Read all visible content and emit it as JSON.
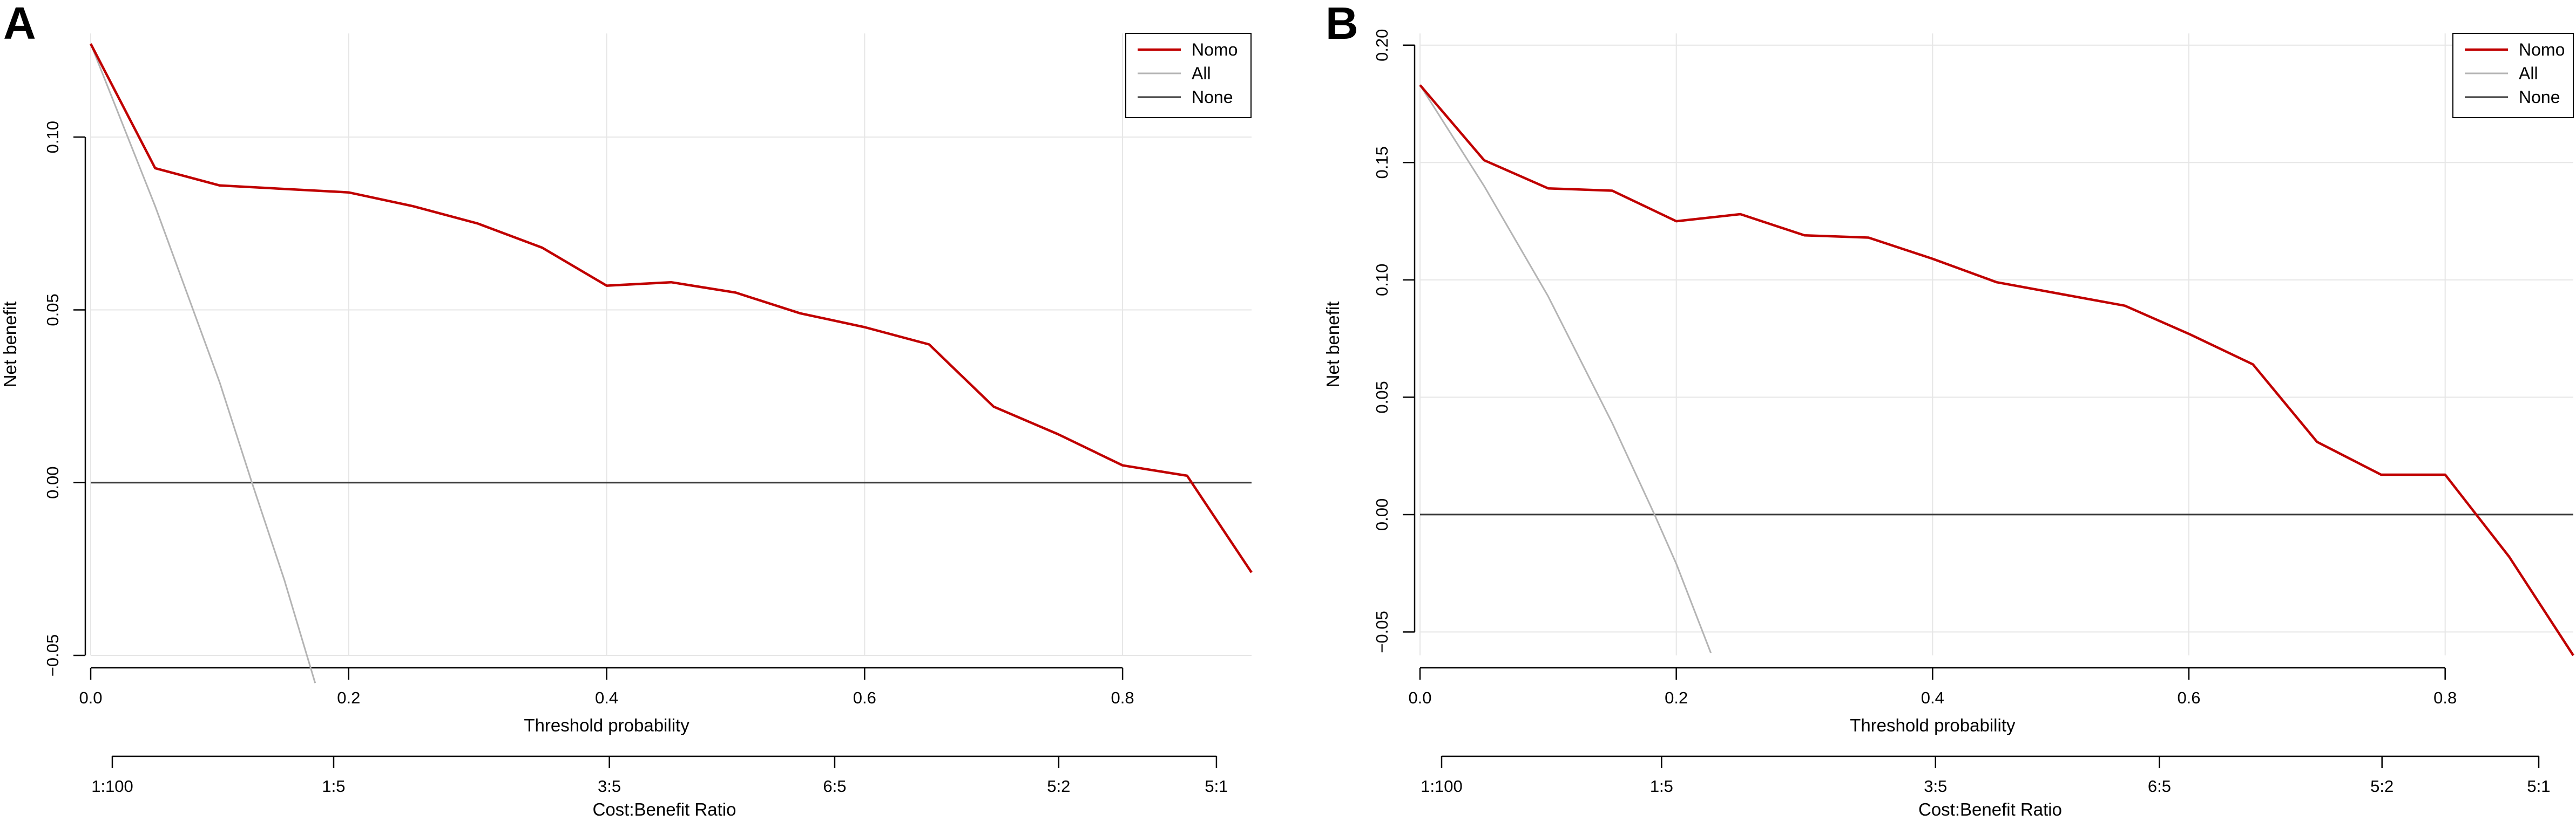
{
  "figure_panels": [
    "A",
    "B"
  ],
  "chart_data": [
    {
      "type": "line",
      "panel_label": "A",
      "title": "",
      "xlabel": "Threshold probability",
      "ylabel": "Net benefit",
      "xlim": [
        0.0,
        0.9
      ],
      "ylim": [
        -0.05,
        0.13
      ],
      "x_ticks": [
        0.0,
        0.2,
        0.4,
        0.6,
        0.8
      ],
      "x_tick_labels": [
        "0.0",
        "0.2",
        "0.4",
        "0.6",
        "0.8"
      ],
      "y_ticks": [
        -0.05,
        0.0,
        0.05,
        0.1
      ],
      "y_tick_labels": [
        "−0.05",
        "0.00",
        "0.05",
        "0.10"
      ],
      "grid": true,
      "legend_position": "top-right",
      "series": [
        {
          "name": "Nomo",
          "color": "#c00000",
          "x": [
            0.0,
            0.05,
            0.1,
            0.15,
            0.2,
            0.25,
            0.3,
            0.35,
            0.4,
            0.45,
            0.5,
            0.55,
            0.6,
            0.65,
            0.7,
            0.75,
            0.8,
            0.85,
            0.9
          ],
          "values": [
            0.127,
            0.091,
            0.086,
            0.085,
            0.084,
            0.08,
            0.075,
            0.068,
            0.057,
            0.058,
            0.055,
            0.049,
            0.045,
            0.04,
            0.022,
            0.014,
            0.005,
            0.002,
            -0.026
          ]
        },
        {
          "name": "All",
          "color": "#b4b4b4",
          "x": [
            0.0,
            0.05,
            0.1,
            0.125,
            0.15,
            0.174
          ],
          "values": [
            0.127,
            0.08,
            0.029,
            0.0,
            -0.028,
            -0.058
          ]
        },
        {
          "name": "None",
          "color": "#3a3a3a",
          "x": [
            0.0,
            0.9
          ],
          "values": [
            0.0,
            0.0
          ]
        }
      ],
      "secondary_axis": {
        "title": "Cost:Benefit Ratio",
        "ticks": [
          0.0,
          0.167,
          0.375,
          0.545,
          0.714,
          0.833
        ],
        "labels": [
          "1:100",
          "1:5",
          "3:5",
          "6:5",
          "5:2",
          "5:1"
        ]
      }
    },
    {
      "type": "line",
      "panel_label": "B",
      "title": "",
      "xlabel": "Threshold probability",
      "ylabel": "Net benefit",
      "xlim": [
        0.0,
        0.9
      ],
      "ylim": [
        -0.06,
        0.205
      ],
      "x_ticks": [
        0.0,
        0.2,
        0.4,
        0.6,
        0.8
      ],
      "x_tick_labels": [
        "0.0",
        "0.2",
        "0.4",
        "0.6",
        "0.8"
      ],
      "y_ticks": [
        -0.05,
        0.0,
        0.05,
        0.1,
        0.15,
        0.2
      ],
      "y_tick_labels": [
        "−0.05",
        "0.00",
        "0.05",
        "0.10",
        "0.15",
        "0.20"
      ],
      "grid": true,
      "legend_position": "top-right",
      "series": [
        {
          "name": "Nomo",
          "color": "#c00000",
          "x": [
            0.0,
            0.05,
            0.1,
            0.15,
            0.2,
            0.25,
            0.3,
            0.35,
            0.4,
            0.45,
            0.5,
            0.55,
            0.6,
            0.65,
            0.7,
            0.75,
            0.8,
            0.85,
            0.9
          ],
          "values": [
            0.183,
            0.151,
            0.139,
            0.138,
            0.125,
            0.128,
            0.119,
            0.118,
            0.109,
            0.099,
            0.094,
            0.089,
            0.077,
            0.064,
            0.031,
            0.017,
            0.017,
            -0.018,
            -0.06
          ]
        },
        {
          "name": "All",
          "color": "#b4b4b4",
          "x": [
            0.0,
            0.05,
            0.1,
            0.15,
            0.183,
            0.2,
            0.227
          ],
          "values": [
            0.183,
            0.14,
            0.093,
            0.039,
            0.0,
            -0.021,
            -0.059
          ]
        },
        {
          "name": "None",
          "color": "#3a3a3a",
          "x": [
            0.0,
            0.9
          ],
          "values": [
            0.0,
            0.0
          ]
        }
      ],
      "secondary_axis": {
        "title": "Cost:Benefit Ratio",
        "ticks": [
          0.0,
          0.167,
          0.375,
          0.545,
          0.714,
          0.833
        ],
        "labels": [
          "1:100",
          "1:5",
          "3:5",
          "6:5",
          "5:2",
          "5:1"
        ]
      }
    }
  ]
}
